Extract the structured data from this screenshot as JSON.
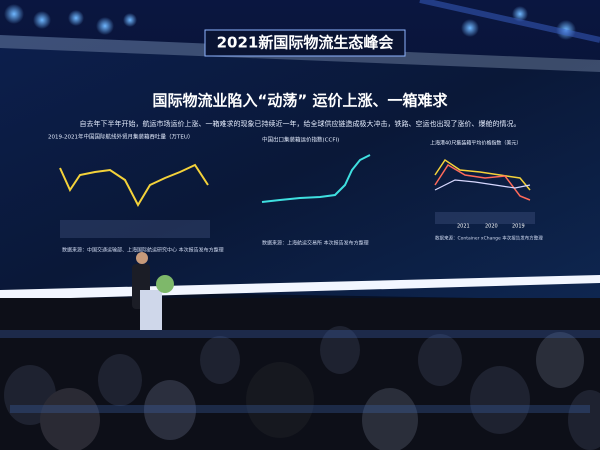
{
  "event_banner": "2021新国际物流生态峰会",
  "slide": {
    "title": "国际物流业陷入“动荡”  运价上涨、一箱难求",
    "intro": "自去年下半年开始，航运市场运价上涨、一箱难求的现象已持续近一年，给全球供应链造成极大冲击，铁路、空运也出现了涨价、爆舱的情况。",
    "panels": [
      {
        "title": "2019-2021年中国国际航线外贸月集装箱吞吐量（万TEU）",
        "source": "数据来源：中国交通运输部、上海国际航运研究中心 本次报告发布方整理"
      },
      {
        "title": "中国出口集装箱运价指数(CCFI)",
        "source": "数据来源：上海航运交易所 本次报告发布方整理"
      },
      {
        "title": "上海港40尺集装箱平均价格指数（美元）",
        "source": "数据来源：Container xChange 本次报告发布方整理",
        "legend": [
          "2021",
          "2020",
          "2019"
        ]
      }
    ]
  }
}
